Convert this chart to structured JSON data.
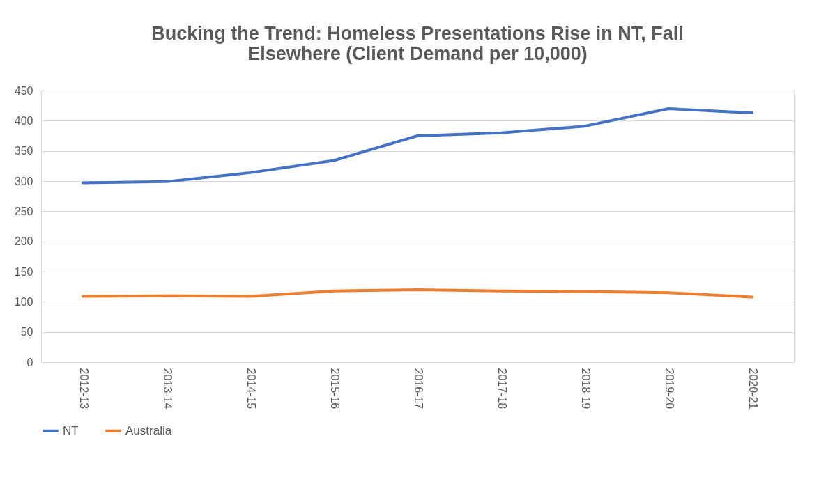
{
  "chart_data": {
    "type": "line",
    "title": "Bucking the Trend: Homeless Presentations Rise in NT, Fall Elsewhere (Client Demand per 10,000)",
    "categories": [
      "2012-13",
      "2013-14",
      "2014-15",
      "2015-16",
      "2016-17",
      "2017-18",
      "2018-19",
      "2019-20",
      "2020-21"
    ],
    "series": [
      {
        "name": "NT",
        "color": "#4472c4",
        "values": [
          297,
          299,
          314,
          334,
          375,
          380,
          391,
          420,
          413
        ]
      },
      {
        "name": "Australia",
        "color": "#ed7d31",
        "values": [
          109,
          110,
          109,
          118,
          120,
          118,
          117,
          115,
          108
        ]
      }
    ],
    "ylim": [
      0,
      450
    ],
    "yticks": [
      0,
      50,
      100,
      150,
      200,
      250,
      300,
      350,
      400,
      450
    ],
    "grid": "y",
    "legend": "bottom",
    "marker": "none",
    "line_style": "solid"
  }
}
